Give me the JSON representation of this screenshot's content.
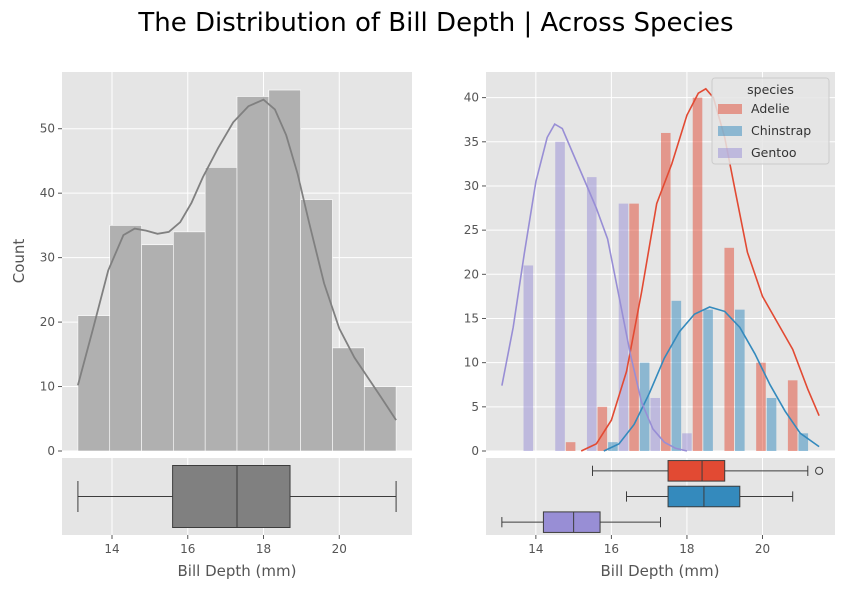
{
  "title": "The Distribution of Bill Depth | Across Species",
  "colors": {
    "panel": "#e5e5e5",
    "grid": "#ffffff",
    "gray_bar": "#b0b0b0",
    "gray_kde": "#808080",
    "gray_box": "#808080",
    "Adelie": "#e24a33",
    "Chinstrap": "#348abd",
    "Gentoo": "#988ed5"
  },
  "chart_data": [
    {
      "type": "bar",
      "name": "overall-histogram",
      "xlabel": "",
      "ylabel": "Count",
      "xlim": [
        12.68,
        21.92
      ],
      "ylim": [
        0,
        58.8
      ],
      "xticks": [
        14,
        16,
        18,
        20
      ],
      "yticks": [
        0,
        10,
        20,
        30,
        40,
        50
      ],
      "bin_edges": [
        13.1,
        13.94,
        14.78,
        15.62,
        16.46,
        17.3,
        18.14,
        18.98,
        19.82,
        20.66,
        21.5
      ],
      "values": [
        21,
        35,
        32,
        34,
        44,
        55,
        56,
        39,
        16,
        10
      ],
      "kde": {
        "x": [
          13.1,
          13.5,
          13.9,
          14.3,
          14.6,
          14.9,
          15.2,
          15.5,
          15.8,
          16.1,
          16.4,
          16.8,
          17.2,
          17.6,
          18.0,
          18.3,
          18.6,
          18.9,
          19.2,
          19.6,
          20.0,
          20.4,
          20.8,
          21.2,
          21.5
        ],
        "y": [
          10.2,
          19.0,
          28.0,
          33.5,
          34.5,
          34.2,
          33.7,
          34.0,
          35.5,
          38.5,
          42.5,
          47.0,
          51.0,
          53.5,
          54.5,
          53.0,
          49.0,
          43.0,
          35.5,
          26.0,
          19.0,
          14.5,
          11.0,
          7.5,
          4.8
        ]
      }
    },
    {
      "type": "box",
      "name": "overall-boxplot",
      "xlabel": "Bill Depth (mm)",
      "xlim": [
        12.68,
        21.92
      ],
      "xticks": [
        14,
        16,
        18,
        20
      ],
      "boxes": [
        {
          "min": 13.1,
          "q1": 15.6,
          "median": 17.3,
          "q3": 18.7,
          "max": 21.5,
          "outliers": []
        }
      ]
    },
    {
      "type": "bar",
      "name": "species-histogram",
      "xlabel": "",
      "ylabel": "",
      "xlim": [
        12.68,
        21.92
      ],
      "ylim": [
        0,
        42.9
      ],
      "xticks": [
        14,
        16,
        18,
        20
      ],
      "yticks": [
        0,
        5,
        10,
        15,
        20,
        25,
        30,
        35,
        40
      ],
      "legend": {
        "title": "species",
        "placement": "top-right"
      },
      "bin_edges": [
        13.1,
        13.94,
        14.78,
        15.62,
        16.46,
        17.3,
        18.14,
        18.98,
        19.82,
        20.66,
        21.5
      ],
      "series": [
        {
          "name": "Adelie",
          "values": [
            0,
            0,
            1,
            5,
            28,
            36,
            40,
            23,
            10,
            8
          ]
        },
        {
          "name": "Chinstrap",
          "values": [
            0,
            0,
            0,
            1,
            10,
            17,
            16,
            16,
            6,
            2
          ]
        },
        {
          "name": "Gentoo",
          "values": [
            21,
            35,
            31,
            28,
            6,
            2,
            0,
            0,
            0,
            0
          ]
        }
      ],
      "kde": [
        {
          "name": "Adelie",
          "x": [
            15.2,
            15.6,
            16.0,
            16.4,
            16.8,
            17.2,
            17.6,
            18.0,
            18.3,
            18.5,
            18.7,
            19.0,
            19.3,
            19.6,
            20.0,
            20.4,
            20.8,
            21.2,
            21.5
          ],
          "y": [
            0,
            0.8,
            3.5,
            9.0,
            18.0,
            28.0,
            32.5,
            38.0,
            40.5,
            41.0,
            40.0,
            35.5,
            29.0,
            22.5,
            17.5,
            14.5,
            11.5,
            7.0,
            4.0
          ]
        },
        {
          "name": "Chinstrap",
          "x": [
            15.8,
            16.2,
            16.6,
            17.0,
            17.4,
            17.8,
            18.2,
            18.6,
            19.0,
            19.4,
            19.8,
            20.2,
            20.6,
            21.0,
            21.5
          ],
          "y": [
            0,
            0.8,
            3.0,
            6.5,
            10.5,
            13.5,
            15.5,
            16.3,
            15.8,
            14.0,
            11.0,
            7.5,
            4.5,
            2.0,
            0.5
          ]
        },
        {
          "name": "Gentoo",
          "x": [
            13.1,
            13.4,
            13.7,
            14.0,
            14.3,
            14.5,
            14.7,
            15.0,
            15.3,
            15.6,
            15.9,
            16.2,
            16.5,
            16.8,
            17.1,
            17.4,
            17.7,
            18.0
          ],
          "y": [
            7.4,
            14.0,
            22.5,
            30.5,
            35.5,
            37.0,
            36.5,
            33.5,
            30.5,
            27.5,
            24.0,
            17.5,
            11.0,
            5.5,
            2.5,
            1.0,
            0.3,
            0
          ]
        }
      ]
    },
    {
      "type": "box",
      "name": "species-boxplot",
      "xlabel": "Bill Depth (mm)",
      "xlim": [
        12.68,
        21.92
      ],
      "xticks": [
        14,
        16,
        18,
        20
      ],
      "boxes": [
        {
          "name": "Adelie",
          "min": 15.5,
          "q1": 17.5,
          "median": 18.4,
          "q3": 19.0,
          "max": 21.2,
          "outliers": [
            21.5
          ]
        },
        {
          "name": "Chinstrap",
          "min": 16.4,
          "q1": 17.5,
          "median": 18.45,
          "q3": 19.4,
          "max": 20.8,
          "outliers": []
        },
        {
          "name": "Gentoo",
          "min": 13.1,
          "q1": 14.2,
          "median": 15.0,
          "q3": 15.7,
          "max": 17.3,
          "outliers": []
        }
      ]
    }
  ]
}
